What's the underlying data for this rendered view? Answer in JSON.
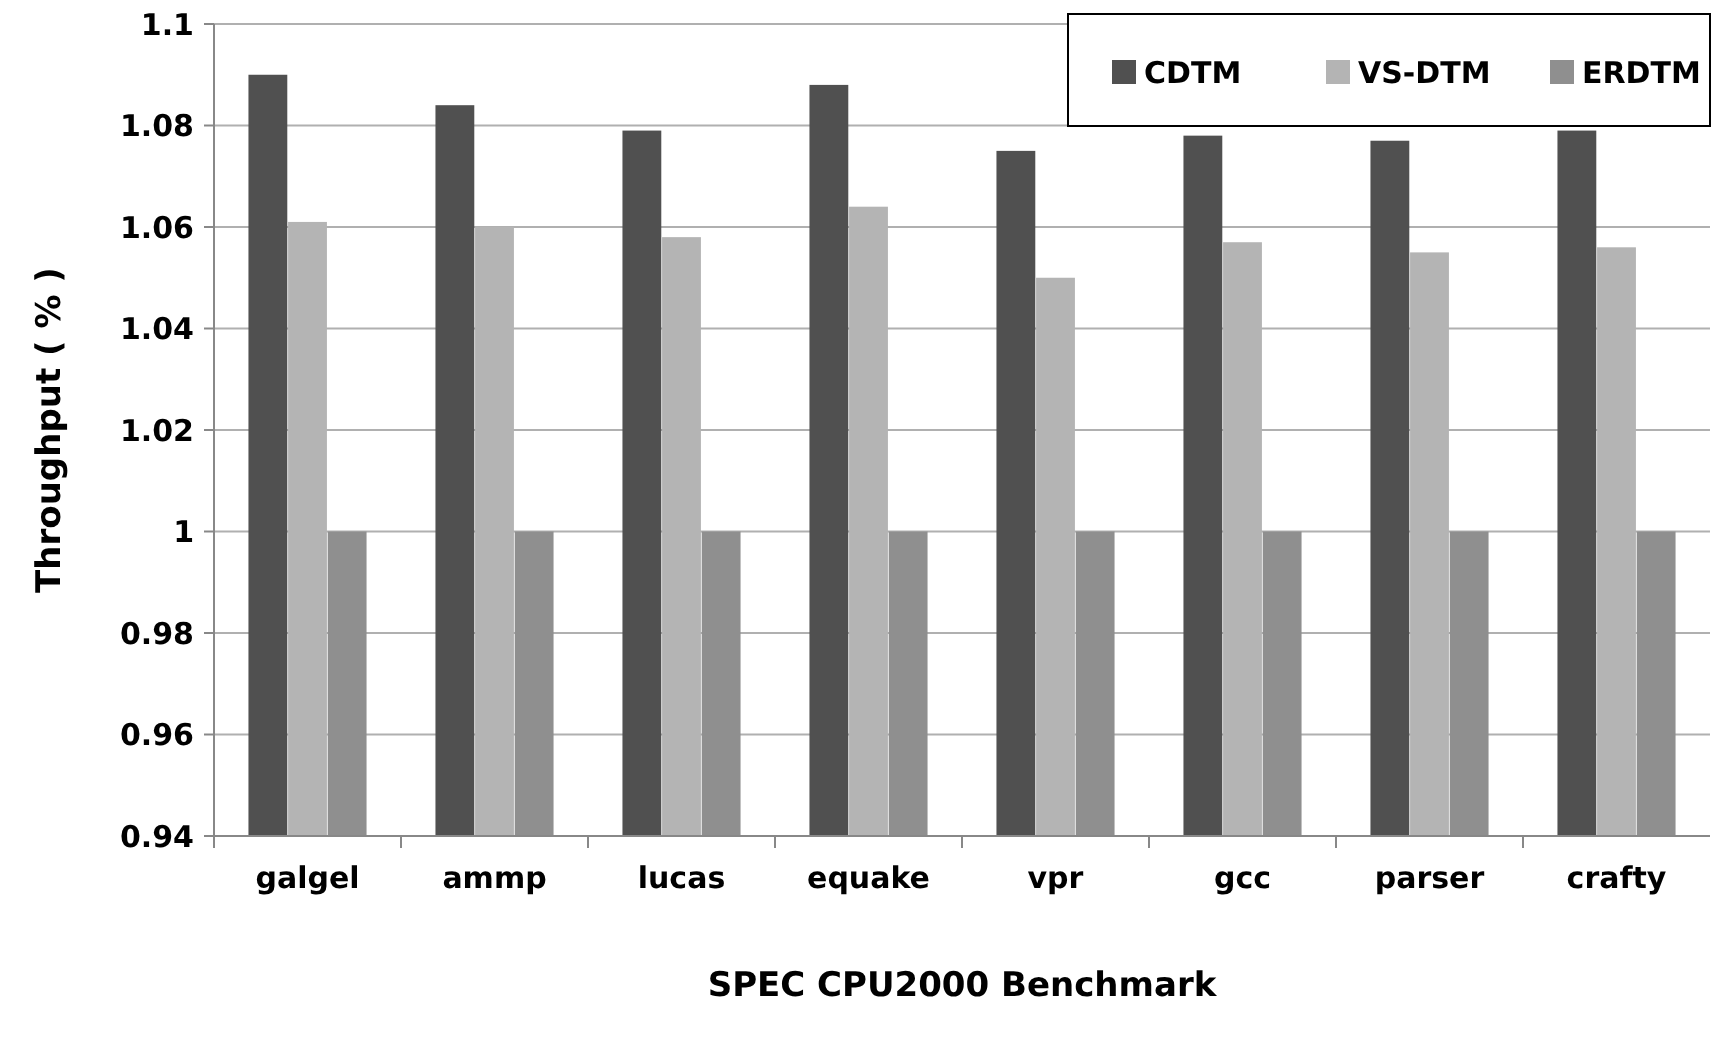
{
  "chart_data": {
    "type": "bar",
    "xlabel": "SPEC CPU2000 Benchmark",
    "ylabel": "Throughput ( % )",
    "categories": [
      "galgel",
      "ammp",
      "lucas",
      "equake",
      "vpr",
      "gcc",
      "parser",
      "crafty"
    ],
    "series": [
      {
        "name": "CDTM",
        "color": "#505050",
        "values": [
          1.09,
          1.084,
          1.079,
          1.088,
          1.075,
          1.078,
          1.077,
          1.079
        ]
      },
      {
        "name": "VS-DTM",
        "color": "#b4b4b4",
        "values": [
          1.061,
          1.06,
          1.058,
          1.064,
          1.05,
          1.057,
          1.055,
          1.056
        ]
      },
      {
        "name": "ERDTM",
        "color": "#8f8f8f",
        "values": [
          1,
          1,
          1,
          1,
          1,
          1,
          1,
          1
        ]
      }
    ],
    "ylim": [
      0.94,
      1.1
    ],
    "yticks": [
      0.94,
      0.96,
      0.98,
      1,
      1.02,
      1.04,
      1.06,
      1.08,
      1.1
    ],
    "grid": "y",
    "legend": "top right"
  }
}
